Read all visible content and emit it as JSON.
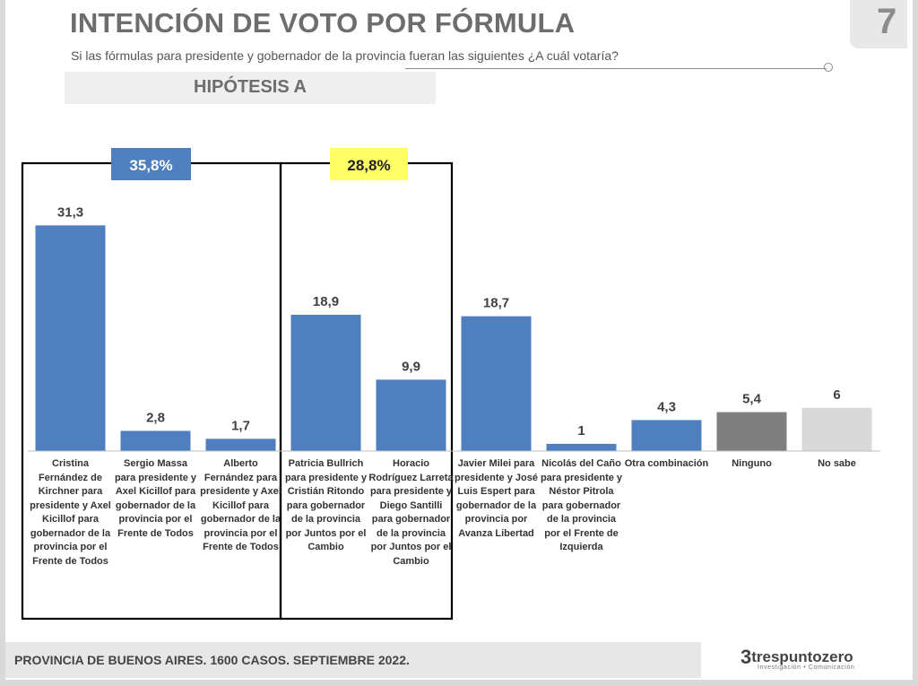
{
  "page": {
    "title": "INTENCIÓN DE VOTO POR FÓRMULA",
    "subtitle": "Si las fórmulas para presidente y gobernador de la provincia fueran las siguientes ¿A cuál votaría?",
    "hypothesis": "HIPÓTESIS A",
    "footer": "PROVINCIA DE BUENOS AIRES. 1600 CASOS. SEPTIEMBRE 2022.",
    "brand_mark": "3",
    "brand_name": "trespuntozero",
    "brand_tagline": "Investigación • Comunicación",
    "corner_logo": "7"
  },
  "chart_data": {
    "type": "bar",
    "title": "INTENCIÓN DE VOTO POR FÓRMULA",
    "ylim": [
      0,
      33
    ],
    "grid": false,
    "categories": [
      "Cristina Fernández de Kirchner para presidente y Axel Kicillof para gobernador de la provincia por el Frente de Todos",
      "Sergio Massa para presidente y Axel Kicillof para gobernador de la provincia por el Frente de Todos",
      "Alberto Fernández para presidente y Axel Kicillof para gobernador de la provincia por el Frente de Todos",
      "Patricia Bullrich para presidente y Cristián Ritondo para gobernador de la provincia por Juntos por el Cambio",
      "Horacio Rodríguez Larreta para presidente y Diego Santilli para gobernador de la provincia por Juntos por el Cambio",
      "Javier Milei para presidente y José Luis Espert para gobernador de la provincia por Avanza Libertad",
      "Nicolás del Caño para presidente y Néstor Pitrola para gobernador de la provincia por el Frente de Izquierda",
      "Otra combinación",
      "Ninguno",
      "No sabe"
    ],
    "category_lines": [
      [
        "Cristina",
        "Fernández de",
        "Kirchner para",
        "presidente y Axel",
        "Kicillof para",
        "gobernador de la",
        "provincia por el",
        "Frente de Todos"
      ],
      [
        "Sergio Massa",
        "para presidente y",
        "Axel Kicillof para",
        "gobernador de la",
        "provincia por el",
        "Frente de Todos"
      ],
      [
        "Alberto",
        "Fernández para",
        "presidente y Axel",
        "Kicillof para",
        "gobernador de la",
        "provincia por el",
        "Frente de Todos"
      ],
      [
        "Patricia Bullrich",
        "para presidente y",
        "Cristián Ritondo",
        "para gobernador",
        "de la provincia",
        "por Juntos por el",
        "Cambio"
      ],
      [
        "Horacio",
        "Rodríguez Larreta",
        "para presidente y",
        "Diego Santilli",
        "para gobernador",
        "de la provincia",
        "por Juntos por el",
        "Cambio"
      ],
      [
        "Javier Milei para",
        "presidente y José",
        "Luis Espert para",
        "gobernador de la",
        "provincia por",
        "Avanza Libertad"
      ],
      [
        "Nicolás del Caño",
        "para presidente y",
        "Néstor Pitrola",
        "para gobernador",
        "de la provincia",
        "por el Frente de",
        "Izquierda"
      ],
      [
        "Otra combinación"
      ],
      [
        "Ninguno"
      ],
      [
        "No sabe"
      ]
    ],
    "values": [
      31.3,
      2.8,
      1.7,
      18.9,
      9.9,
      18.7,
      1,
      4.3,
      5.4,
      6
    ],
    "value_labels": [
      "31,3",
      "2,8",
      "1,7",
      "18,9",
      "9,9",
      "18,7",
      "1",
      "4,3",
      "5,4",
      "6"
    ],
    "bar_colors": [
      "#4f7fbf",
      "#4f7fbf",
      "#4f7fbf",
      "#4f7fbf",
      "#4f7fbf",
      "#4f7fbf",
      "#4f7fbf",
      "#4f7fbf",
      "#7f7f7f",
      "#d9d9d9"
    ],
    "groups": [
      {
        "label": "35,8%",
        "members": [
          0,
          1,
          2
        ],
        "label_bg": "#4f7fbf",
        "label_color": "#ffffff"
      },
      {
        "label": "28,8%",
        "members": [
          3,
          4
        ],
        "label_bg": "#ffff66",
        "label_color": "#222222"
      }
    ]
  }
}
